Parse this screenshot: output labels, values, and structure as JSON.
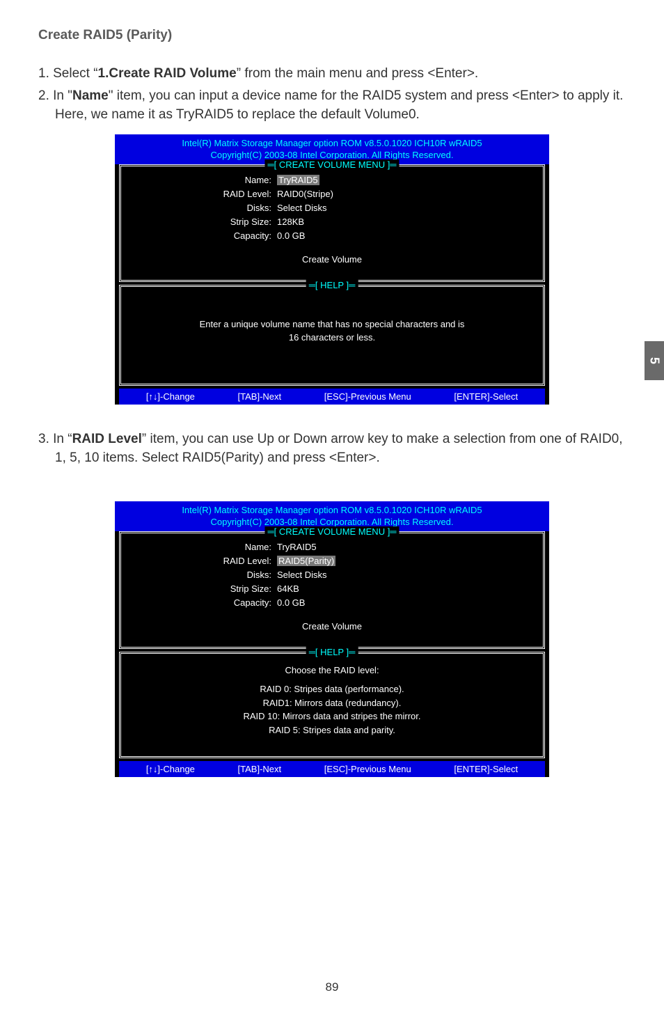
{
  "page": {
    "number": "89",
    "side_tab": "5"
  },
  "heading": "Create RAID5 (Parity)",
  "steps": {
    "s1_pre": "1. Select “",
    "s1_bold": "1.Create RAID Volume",
    "s1_post": "” from the main menu and press <Enter>.",
    "s2_pre": "2. In \"",
    "s2_bold": "Name",
    "s2_post": "\" item, you can input a device name for the RAID5 system and press <Enter> to apply it. Here, we name it as TryRAID5 to replace the default Volume0.",
    "s3_pre": "3. In “",
    "s3_bold": "RAID Level",
    "s3_post": "” item, you can use Up or Down arrow key to make a selection from one of RAID0, 1, 5, 10 items. Select RAID5(Parity) and press <Enter>."
  },
  "bios": {
    "header1": "Intel(R) Matrix Storage Manager option ROM v8.5.0.1020 ICH10R wRAID5",
    "header2": "Copyright(C) 2003-08 Intel Corporation.   All Rights Reserved.",
    "menu_label": "═[ CREATE VOLUME MENU ]═",
    "help_label": "═[ HELP ]═",
    "labels": {
      "name": "Name:",
      "raid_level": "RAID Level:",
      "disks": "Disks:",
      "strip_size": "Strip Size:",
      "capacity": "Capacity:"
    },
    "create_volume": "Create Volume",
    "footer": {
      "change": "[↑↓]-Change",
      "tab": "[TAB]-Next",
      "esc": "[ESC]-Previous Menu",
      "enter": "[ENTER]-Select"
    }
  },
  "screen1": {
    "name_val": "TryRAID5",
    "raid_level_val": "RAID0(Stripe)",
    "disks_val": "Select Disks",
    "strip_size_val": "128KB",
    "capacity_val": "0.0   GB",
    "help_line1": "Enter a unique volume name that has no special characters and is",
    "help_line2": "16 characters or less."
  },
  "screen2": {
    "name_val": "TryRAID5",
    "raid_level_val": "RAID5(Parity)",
    "disks_val": "Select Disks",
    "strip_size_val": "64KB",
    "capacity_val": "0.0   GB",
    "help_title": "Choose the RAID level:",
    "help_l1": "RAID 0: Stripes data (performance).",
    "help_l2": "RAID1: Mirrors data (redundancy).",
    "help_l3": "RAID 10: Mirrors data and stripes the mirror.",
    "help_l4": "RAID 5: Stripes data and parity."
  }
}
